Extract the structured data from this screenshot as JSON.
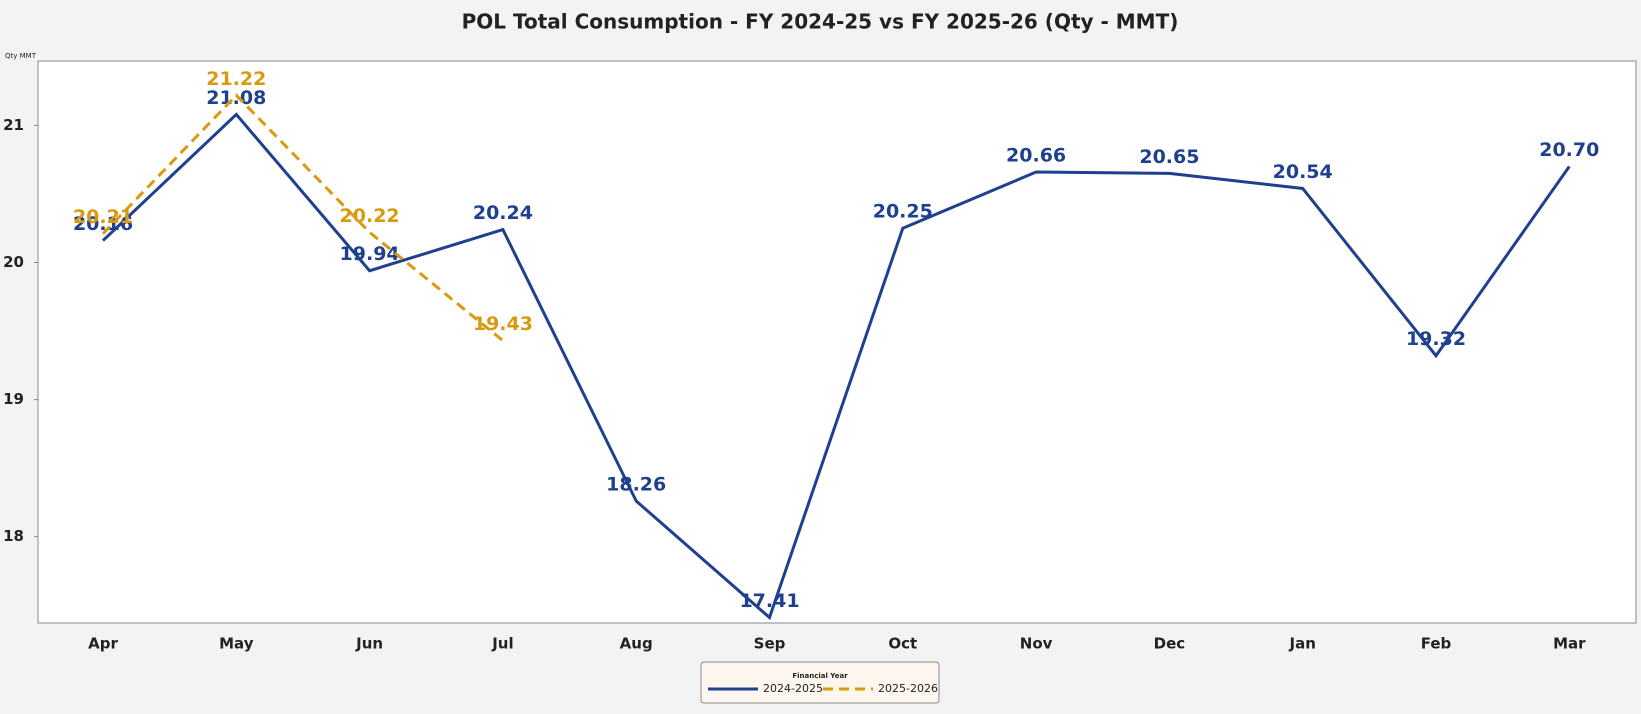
{
  "chart_data": {
    "type": "line",
    "title": "POL Total Consumption - FY 2024-25 vs FY 2025-26 (Qty - MMT)",
    "y_label": "Qty MMT",
    "categories": [
      "Apr",
      "May",
      "Jun",
      "Jul",
      "Aug",
      "Sep",
      "Oct",
      "Nov",
      "Dec",
      "Jan",
      "Feb",
      "Mar"
    ],
    "series": [
      {
        "name": "2024-2025",
        "color": "#1f3f8f",
        "dash": false,
        "values": [
          20.16,
          21.08,
          19.94,
          20.24,
          18.26,
          17.41,
          20.25,
          20.66,
          20.65,
          20.54,
          19.32,
          20.7
        ],
        "value_labels": [
          "20.16",
          "21.08",
          "19.94",
          "20.24",
          "18.26",
          "17.41",
          "20.25",
          "20.66",
          "20.65",
          "20.54",
          "19.32",
          "20.70"
        ]
      },
      {
        "name": "2025-2026",
        "color": "#d99a10",
        "dash": true,
        "values": [
          20.21,
          21.22,
          20.22,
          19.43,
          null,
          null,
          null,
          null,
          null,
          null,
          null,
          null
        ],
        "value_labels": [
          "20.21",
          "21.22",
          "20.22",
          "19.43",
          null,
          null,
          null,
          null,
          null,
          null,
          null,
          null
        ]
      }
    ],
    "ylim": [
      17.37,
      21.47
    ],
    "yticks": [
      18,
      19,
      20,
      21
    ],
    "legend_title": "Financial Year",
    "legend_position": "bottom"
  }
}
